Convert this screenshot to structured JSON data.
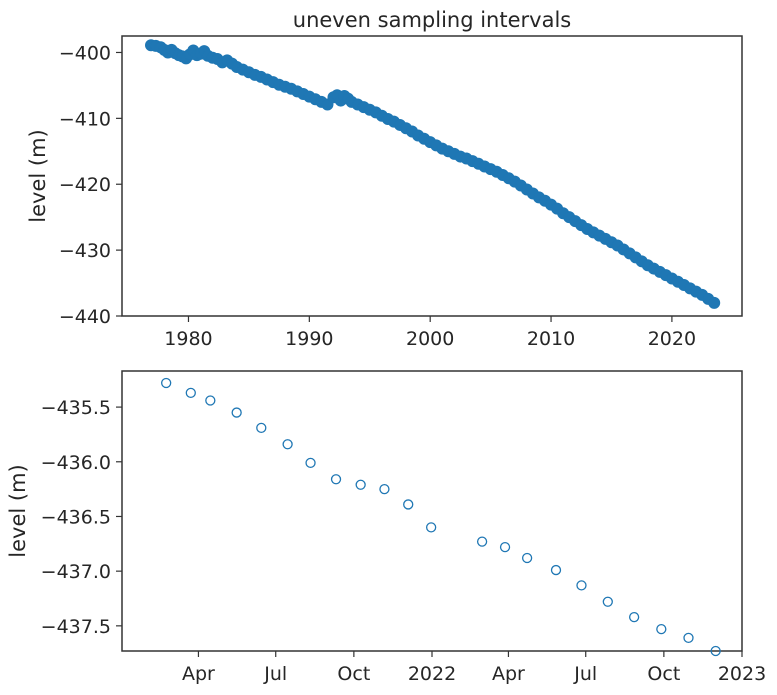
{
  "chart_data": [
    {
      "type": "scatter",
      "title": "uneven sampling intervals",
      "xlabel": "",
      "ylabel": "level (m)",
      "xlim": [
        1974.5,
        2025.8
      ],
      "ylim": [
        -440,
        -397.5
      ],
      "x_ticks": [
        1980,
        1990,
        2000,
        2010,
        2020
      ],
      "x_tick_labels": [
        "1980",
        "1990",
        "2000",
        "2010",
        "2020"
      ],
      "y_ticks": [
        -440,
        -430,
        -420,
        -410,
        -400
      ],
      "y_tick_labels": [
        "−440",
        "−430",
        "−420",
        "−410",
        "−400"
      ],
      "marker": "filled-circle",
      "color": "#1f77b4",
      "grid": false,
      "series": [
        {
          "x": [
            1976.9,
            1977.3,
            1977.7,
            1978.0,
            1978.3,
            1978.6,
            1978.9,
            1979.2,
            1979.5,
            1979.8,
            1980.1,
            1980.4,
            1980.7,
            1981.0,
            1981.3,
            1981.6,
            1982.0,
            1982.4,
            1982.8,
            1983.2,
            1983.6,
            1984.0,
            1984.5,
            1985.0,
            1985.5,
            1986.0,
            1986.5,
            1987.0,
            1987.5,
            1988.0,
            1988.5,
            1989.0,
            1989.5,
            1990.0,
            1990.5,
            1991.0,
            1991.5,
            1992.0,
            1992.3,
            1992.6,
            1992.9,
            1993.2,
            1993.5,
            1994.0,
            1994.5,
            1995.0,
            1995.5,
            1996.0,
            1996.5,
            1997.0,
            1997.5,
            1998.0,
            1998.5,
            1999.0,
            1999.5,
            2000.0,
            2000.5,
            2001.0,
            2001.5,
            2002.0,
            2002.5,
            2003.0,
            2003.5,
            2004.0,
            2004.5,
            2005.0,
            2005.5,
            2006.0,
            2006.5,
            2007.0,
            2007.5,
            2008.0,
            2008.5,
            2009.0,
            2009.5,
            2010.0,
            2010.5,
            2011.0,
            2011.5,
            2012.0,
            2012.5,
            2013.0,
            2013.5,
            2014.0,
            2014.5,
            2015.0,
            2015.5,
            2016.0,
            2016.5,
            2017.0,
            2017.5,
            2018.0,
            2018.5,
            2019.0,
            2019.5,
            2020.0,
            2020.5,
            2021.0,
            2021.5,
            2022.0,
            2022.5,
            2023.0,
            2023.5
          ],
          "y": [
            -398.9,
            -399.0,
            -399.2,
            -399.6,
            -400.0,
            -399.6,
            -400.1,
            -400.4,
            -400.6,
            -400.9,
            -400.3,
            -399.7,
            -400.4,
            -400.2,
            -399.8,
            -400.5,
            -400.8,
            -401.0,
            -401.5,
            -401.2,
            -401.7,
            -402.2,
            -402.6,
            -403.0,
            -403.4,
            -403.7,
            -404.1,
            -404.5,
            -404.9,
            -405.2,
            -405.5,
            -405.9,
            -406.3,
            -406.7,
            -407.1,
            -407.5,
            -407.9,
            -406.8,
            -406.5,
            -407.3,
            -406.6,
            -407.0,
            -407.5,
            -407.9,
            -408.3,
            -408.7,
            -409.1,
            -409.6,
            -410.1,
            -410.5,
            -411.0,
            -411.5,
            -412.0,
            -412.6,
            -413.1,
            -413.6,
            -414.1,
            -414.6,
            -415.0,
            -415.4,
            -415.8,
            -416.1,
            -416.5,
            -416.9,
            -417.3,
            -417.7,
            -418.1,
            -418.6,
            -419.1,
            -419.6,
            -420.2,
            -420.8,
            -421.4,
            -422.0,
            -422.5,
            -423.1,
            -423.7,
            -424.4,
            -425.0,
            -425.6,
            -426.2,
            -426.8,
            -427.3,
            -427.8,
            -428.3,
            -428.8,
            -429.3,
            -429.9,
            -430.5,
            -431.1,
            -431.7,
            -432.3,
            -432.8,
            -433.3,
            -433.8,
            -434.3,
            -434.8,
            -435.3,
            -435.8,
            -436.3,
            -436.8,
            -437.4,
            -438.0
          ]
        }
      ]
    },
    {
      "type": "scatter",
      "title": "",
      "xlabel": "",
      "ylabel": "level (m)",
      "x_unit": "date",
      "xlim": [
        "2021-01-01",
        "2023-01-01"
      ],
      "ylim": [
        -437.73,
        -435.17
      ],
      "x_ticks": [
        "2021-04-01",
        "2021-07-01",
        "2021-10-01",
        "2022-01-01",
        "2022-04-01",
        "2022-07-01",
        "2022-10-01",
        "2023-01-01"
      ],
      "x_tick_labels": [
        "Apr",
        "Jul",
        "Oct",
        "2022",
        "Apr",
        "Jul",
        "Oct",
        "2023"
      ],
      "y_ticks": [
        -437.5,
        -437.0,
        -436.5,
        -436.0,
        -435.5
      ],
      "y_tick_labels": [
        "−437.5",
        "−437.0",
        "−436.5",
        "−436.0",
        "−435.5"
      ],
      "marker": "open-circle",
      "color": "#1f77b4",
      "grid": false,
      "series": [
        {
          "x": [
            "2021-02-22",
            "2021-03-23",
            "2021-04-15",
            "2021-05-16",
            "2021-06-14",
            "2021-07-15",
            "2021-08-11",
            "2021-09-10",
            "2021-10-09",
            "2021-11-06",
            "2021-12-04",
            "2021-12-31",
            "2022-03-01",
            "2022-03-28",
            "2022-04-23",
            "2022-05-27",
            "2022-06-26",
            "2022-07-27",
            "2022-08-27",
            "2022-09-28",
            "2022-10-30",
            "2022-12-01"
          ],
          "y": [
            -435.28,
            -435.37,
            -435.44,
            -435.55,
            -435.69,
            -435.84,
            -436.01,
            -436.16,
            -436.21,
            -436.25,
            -436.39,
            -436.6,
            -436.73,
            -436.78,
            -436.88,
            -436.99,
            -437.13,
            -437.28,
            -437.42,
            -437.53,
            -437.61,
            -437.73
          ]
        }
      ]
    }
  ]
}
